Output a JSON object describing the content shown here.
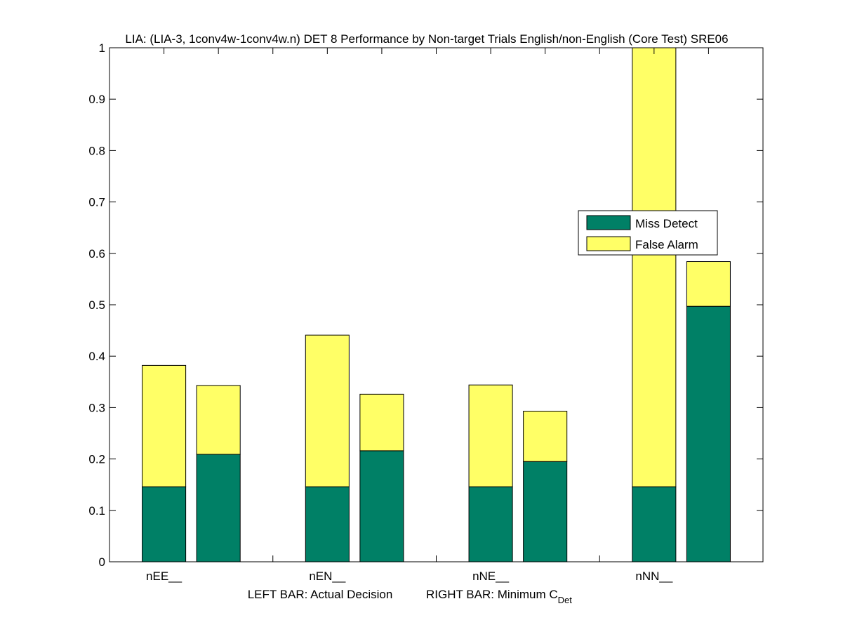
{
  "chart_data": {
    "type": "bar",
    "stacked": true,
    "title": "LIA: (LIA-3, 1conv4w-1conv4w.n) DET 8 Performance by Non-target Trials English/non-English (Core Test) SRE06",
    "xlabel_parts": {
      "left": "LEFT BAR: Actual Decision",
      "right_prefix": "RIGHT BAR: Minimum C",
      "right_subscript": "Det"
    },
    "ylabel": "",
    "ylim": [
      0,
      1
    ],
    "yticks": [
      0,
      0.1,
      0.2,
      0.3,
      0.4,
      0.5,
      0.6,
      0.7,
      0.8,
      0.9,
      1
    ],
    "ytick_labels": [
      "0",
      "0.1",
      "0.2",
      "0.3",
      "0.4",
      "0.5",
      "0.6",
      "0.7",
      "0.8",
      "0.9",
      "1"
    ],
    "categories": [
      "nEE__",
      "nEN__",
      "nNE__",
      "nNN__"
    ],
    "bars_per_category": [
      "Actual Decision",
      "Minimum CDet"
    ],
    "series": [
      {
        "name": "Miss Detect",
        "color": "#008066",
        "values": [
          [
            0.146,
            0.209
          ],
          [
            0.146,
            0.216
          ],
          [
            0.146,
            0.195
          ],
          [
            0.146,
            0.497
          ]
        ]
      },
      {
        "name": "False Alarm",
        "color": "#ffff66",
        "values": [
          [
            0.236,
            0.134
          ],
          [
            0.295,
            0.11
          ],
          [
            0.198,
            0.098
          ],
          [
            0.854,
            0.087
          ]
        ]
      }
    ],
    "legend": {
      "placement": "right",
      "entries": [
        "Miss Detect",
        "False Alarm"
      ]
    },
    "grid": false
  }
}
